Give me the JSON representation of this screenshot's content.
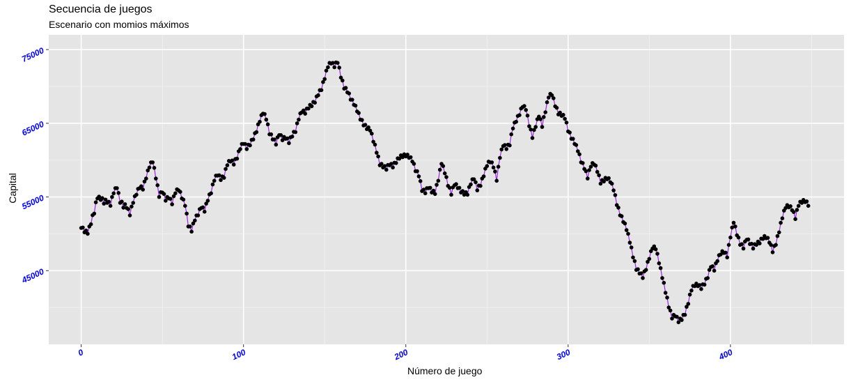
{
  "chart_data": {
    "type": "line",
    "title": "Secuencia de juegos",
    "subtitle": "Escenario con momios máximos",
    "xlabel": "Número de juego",
    "ylabel": "Capital",
    "xlim": [
      -20,
      470
    ],
    "ylim": [
      35000,
      77000
    ],
    "xticks": [
      0,
      100,
      200,
      300,
      400
    ],
    "yticks": [
      45000,
      55000,
      65000,
      75000
    ],
    "grid": true,
    "line_color": "#a020f0",
    "point_color": "#000000",
    "tick_label_color": "#0000ff",
    "panel_background": "#e5e5e5",
    "anchors": [
      [
        0,
        50800
      ],
      [
        2,
        50200
      ],
      [
        4,
        50000
      ],
      [
        6,
        51300
      ],
      [
        10,
        54800
      ],
      [
        12,
        54600
      ],
      [
        16,
        54200
      ],
      [
        18,
        53800
      ],
      [
        20,
        55500
      ],
      [
        22,
        56200
      ],
      [
        24,
        54200
      ],
      [
        28,
        53500
      ],
      [
        30,
        52500
      ],
      [
        32,
        54200
      ],
      [
        34,
        55300
      ],
      [
        36,
        56200
      ],
      [
        38,
        56000
      ],
      [
        40,
        57500
      ],
      [
        42,
        59000
      ],
      [
        44,
        59700
      ],
      [
        46,
        57500
      ],
      [
        48,
        55000
      ],
      [
        50,
        55600
      ],
      [
        52,
        54500
      ],
      [
        54,
        54800
      ],
      [
        56,
        54000
      ],
      [
        58,
        55500
      ],
      [
        60,
        55900
      ],
      [
        62,
        54800
      ],
      [
        64,
        53800
      ],
      [
        66,
        51000
      ],
      [
        68,
        50300
      ],
      [
        70,
        51800
      ],
      [
        72,
        52500
      ],
      [
        74,
        53500
      ],
      [
        76,
        53000
      ],
      [
        78,
        54500
      ],
      [
        80,
        55500
      ],
      [
        82,
        57200
      ],
      [
        84,
        57900
      ],
      [
        86,
        57300
      ],
      [
        88,
        57600
      ],
      [
        90,
        59300
      ],
      [
        92,
        59800
      ],
      [
        94,
        59400
      ],
      [
        96,
        60200
      ],
      [
        98,
        61500
      ],
      [
        100,
        62200
      ],
      [
        102,
        61500
      ],
      [
        104,
        62000
      ],
      [
        106,
        62800
      ],
      [
        108,
        63800
      ],
      [
        110,
        65200
      ],
      [
        112,
        66300
      ],
      [
        114,
        65500
      ],
      [
        116,
        63500
      ],
      [
        118,
        62800
      ],
      [
        120,
        62100
      ],
      [
        122,
        63400
      ],
      [
        124,
        62700
      ],
      [
        126,
        62900
      ],
      [
        128,
        62300
      ],
      [
        130,
        63200
      ],
      [
        132,
        63800
      ],
      [
        134,
        65500
      ],
      [
        136,
        66500
      ],
      [
        138,
        66300
      ],
      [
        140,
        67000
      ],
      [
        142,
        67300
      ],
      [
        144,
        67800
      ],
      [
        146,
        68800
      ],
      [
        148,
        69500
      ],
      [
        150,
        71000
      ],
      [
        152,
        72600
      ],
      [
        154,
        73100
      ],
      [
        156,
        72600
      ],
      [
        158,
        73200
      ],
      [
        160,
        71200
      ],
      [
        162,
        69700
      ],
      [
        164,
        69200
      ],
      [
        166,
        68200
      ],
      [
        168,
        67500
      ],
      [
        170,
        66600
      ],
      [
        172,
        65500
      ],
      [
        174,
        64700
      ],
      [
        176,
        64200
      ],
      [
        178,
        64000
      ],
      [
        180,
        62500
      ],
      [
        182,
        61000
      ],
      [
        184,
        59300
      ],
      [
        186,
        59000
      ],
      [
        188,
        58700
      ],
      [
        190,
        59300
      ],
      [
        192,
        59000
      ],
      [
        194,
        59600
      ],
      [
        196,
        60200
      ],
      [
        198,
        60400
      ],
      [
        200,
        60500
      ],
      [
        202,
        60300
      ],
      [
        204,
        59800
      ],
      [
        206,
        58500
      ],
      [
        208,
        57800
      ],
      [
        210,
        55800
      ],
      [
        212,
        55500
      ],
      [
        214,
        56200
      ],
      [
        216,
        55600
      ],
      [
        218,
        55400
      ],
      [
        220,
        57200
      ],
      [
        222,
        59500
      ],
      [
        224,
        58200
      ],
      [
        226,
        56500
      ],
      [
        228,
        55300
      ],
      [
        230,
        56600
      ],
      [
        232,
        56200
      ],
      [
        234,
        55600
      ],
      [
        236,
        55300
      ],
      [
        238,
        55300
      ],
      [
        240,
        56700
      ],
      [
        242,
        57400
      ],
      [
        244,
        55900
      ],
      [
        246,
        56500
      ],
      [
        248,
        57800
      ],
      [
        250,
        59200
      ],
      [
        252,
        59700
      ],
      [
        254,
        59000
      ],
      [
        256,
        57200
      ],
      [
        258,
        60300
      ],
      [
        260,
        61900
      ],
      [
        262,
        61500
      ],
      [
        264,
        62000
      ],
      [
        266,
        64300
      ],
      [
        268,
        65200
      ],
      [
        270,
        66100
      ],
      [
        272,
        67200
      ],
      [
        274,
        66800
      ],
      [
        276,
        64600
      ],
      [
        278,
        63000
      ],
      [
        280,
        64500
      ],
      [
        282,
        65900
      ],
      [
        284,
        64500
      ],
      [
        286,
        66500
      ],
      [
        288,
        68500
      ],
      [
        290,
        68800
      ],
      [
        292,
        67300
      ],
      [
        294,
        66200
      ],
      [
        296,
        66000
      ],
      [
        298,
        65600
      ],
      [
        300,
        63900
      ],
      [
        302,
        62900
      ],
      [
        304,
        62200
      ],
      [
        306,
        61200
      ],
      [
        308,
        59700
      ],
      [
        310,
        58800
      ],
      [
        312,
        57500
      ],
      [
        314,
        59100
      ],
      [
        316,
        59400
      ],
      [
        318,
        58400
      ],
      [
        320,
        56800
      ],
      [
        322,
        57100
      ],
      [
        324,
        57400
      ],
      [
        326,
        57000
      ],
      [
        328,
        55900
      ],
      [
        330,
        53900
      ],
      [
        332,
        52500
      ],
      [
        334,
        51600
      ],
      [
        336,
        50500
      ],
      [
        338,
        48800
      ],
      [
        340,
        46800
      ],
      [
        342,
        45100
      ],
      [
        344,
        44600
      ],
      [
        346,
        44000
      ],
      [
        348,
        45100
      ],
      [
        350,
        46600
      ],
      [
        352,
        48000
      ],
      [
        354,
        47900
      ],
      [
        356,
        46000
      ],
      [
        358,
        44000
      ],
      [
        360,
        42000
      ],
      [
        362,
        40000
      ],
      [
        364,
        38500
      ],
      [
        366,
        38800
      ],
      [
        368,
        38000
      ],
      [
        370,
        38300
      ],
      [
        372,
        39000
      ],
      [
        374,
        40500
      ],
      [
        376,
        42300
      ],
      [
        378,
        42900
      ],
      [
        380,
        42900
      ],
      [
        382,
        42500
      ],
      [
        384,
        43100
      ],
      [
        386,
        44000
      ],
      [
        388,
        45500
      ],
      [
        390,
        45000
      ],
      [
        392,
        46300
      ],
      [
        394,
        47200
      ],
      [
        396,
        47400
      ],
      [
        398,
        46800
      ],
      [
        400,
        49500
      ],
      [
        402,
        51500
      ],
      [
        404,
        49800
      ],
      [
        406,
        48500
      ],
      [
        408,
        48000
      ],
      [
        410,
        49200
      ],
      [
        412,
        48600
      ],
      [
        414,
        48000
      ],
      [
        416,
        48500
      ],
      [
        418,
        48700
      ],
      [
        420,
        49300
      ],
      [
        422,
        49400
      ],
      [
        424,
        48800
      ],
      [
        426,
        47500
      ],
      [
        428,
        48500
      ],
      [
        430,
        50200
      ],
      [
        432,
        52100
      ],
      [
        434,
        53500
      ],
      [
        436,
        53600
      ],
      [
        438,
        53200
      ],
      [
        440,
        52000
      ],
      [
        442,
        53800
      ],
      [
        444,
        54200
      ],
      [
        446,
        54300
      ],
      [
        448,
        53800
      ]
    ]
  }
}
